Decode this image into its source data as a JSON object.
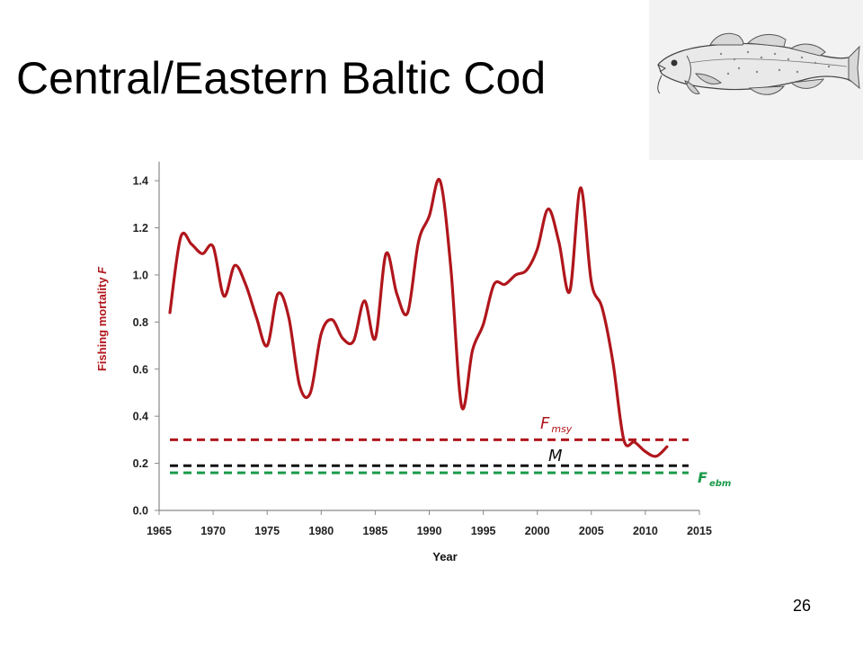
{
  "slide": {
    "title": "Central/Eastern Baltic Cod",
    "page_number": "26",
    "illustration_icon": "cod-fish-icon"
  },
  "chart_data": {
    "type": "line",
    "xlabel": "Year",
    "ylabel_main": "Fishing mortality ",
    "ylabel_italic": "F",
    "xlim": [
      1965,
      2015
    ],
    "ylim": [
      0,
      1.45
    ],
    "x_ticks": [
      "1965",
      "1970",
      "1975",
      "1980",
      "1985",
      "1990",
      "1995",
      "2000",
      "2005",
      "2010",
      "2015"
    ],
    "y_ticks": [
      "0.0",
      "0.2",
      "0.4",
      "0.6",
      "0.8",
      "1.0",
      "1.2",
      "1.4"
    ],
    "grid": false,
    "series": [
      {
        "color": "#b0161c",
        "x": [
          1966,
          1967,
          1968,
          1969,
          1970,
          1971,
          1972,
          1973,
          1974,
          1975,
          1976,
          1977,
          1978,
          1979,
          1980,
          1981,
          1982,
          1983,
          1984,
          1985,
          1986,
          1987,
          1988,
          1989,
          1990,
          1991,
          1992,
          1993,
          1994,
          1995,
          1996,
          1997,
          1998,
          1999,
          2000,
          2001,
          2002,
          2003,
          2004,
          2005,
          2006,
          2007,
          2008,
          2009,
          2010,
          2011,
          2012
        ],
        "y": [
          0.84,
          1.16,
          1.13,
          1.09,
          1.12,
          0.91,
          1.04,
          0.96,
          0.82,
          0.7,
          0.92,
          0.82,
          0.53,
          0.5,
          0.75,
          0.81,
          0.73,
          0.72,
          0.89,
          0.73,
          1.09,
          0.92,
          0.84,
          1.14,
          1.25,
          1.4,
          1.03,
          0.44,
          0.68,
          0.79,
          0.96,
          0.96,
          1.0,
          1.02,
          1.11,
          1.28,
          1.14,
          0.93,
          1.37,
          0.97,
          0.86,
          0.63,
          0.3,
          0.29,
          0.25,
          0.23,
          0.27
        ]
      }
    ],
    "reference_lines": [
      {
        "name": "Fmsy",
        "label_main": "F",
        "label_sub": "msy",
        "y": 0.3,
        "color": "#b0161c",
        "x_range": [
          1965,
          2014
        ]
      },
      {
        "name": "M",
        "label_main": "M",
        "label_sub": "",
        "y": 0.19,
        "color": "#111111",
        "x_range": [
          1965,
          2014
        ]
      },
      {
        "name": "Febm",
        "label_main": "F",
        "label_sub": "ebm",
        "y": 0.16,
        "color": "#1a9a4a",
        "x_range": [
          1965,
          2014
        ]
      }
    ]
  }
}
